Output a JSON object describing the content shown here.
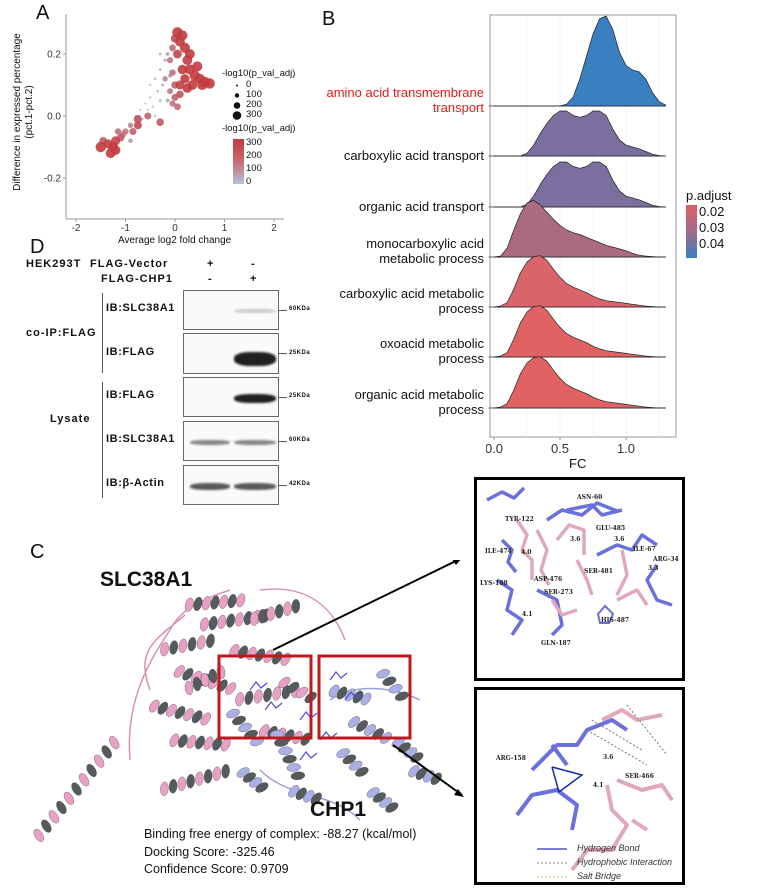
{
  "panels": {
    "a": "A",
    "b": "B",
    "c": "C",
    "d": "D"
  },
  "chart_data": [
    {
      "type": "scatter",
      "xlabel": "Average log2 fold change",
      "ylabel": "Difference in expressed percentage\n(pct.1-pct.2)",
      "ylabel_lines": [
        "Difference in expressed percentage",
        "(pct.1-pct.2)"
      ],
      "xlim": [
        -2.2,
        2.2
      ],
      "ylim": [
        -0.33,
        0.31
      ],
      "xticks": [
        "-2",
        "-1",
        "0",
        "1",
        "2"
      ],
      "xtick_values": [
        -2,
        -1,
        0,
        1,
        2
      ],
      "yticks": [
        "0.2",
        "0.0",
        "-0.2"
      ],
      "ytick_values": [
        0.2,
        0,
        -0.2
      ],
      "grid": false,
      "size_legend": {
        "title": "-log10(p_val_adj)",
        "values": [
          "0",
          "100",
          "200",
          "300"
        ]
      },
      "color_legend": {
        "title": "-log10(p_val_adj)",
        "labels": [
          "300",
          "200",
          "100",
          "0"
        ],
        "low_color": "#b7c0da",
        "high_color": "#c13b3f"
      },
      "legend_position": "right",
      "points": [
        [
          0.05,
          0.27,
          300
        ],
        [
          0.15,
          0.26,
          290
        ],
        [
          0.1,
          0.24,
          280
        ],
        [
          0.2,
          0.22,
          290
        ],
        [
          0.05,
          0.2,
          240
        ],
        [
          0.25,
          0.18,
          280
        ],
        [
          0.3,
          0.15,
          290
        ],
        [
          0.4,
          0.13,
          300
        ],
        [
          0.5,
          0.12,
          290
        ],
        [
          0.6,
          0.11,
          300
        ],
        [
          0.7,
          0.105,
          300
        ],
        [
          0.2,
          0.12,
          260
        ],
        [
          0.35,
          0.1,
          280
        ],
        [
          0.15,
          0.15,
          270
        ],
        [
          0.1,
          0.1,
          250
        ],
        [
          0.45,
          0.16,
          290
        ],
        [
          0.3,
          0.2,
          280
        ],
        [
          0.0,
          0.25,
          230
        ],
        [
          0.55,
          0.1,
          290
        ],
        [
          0.25,
          0.09,
          270
        ],
        [
          -0.05,
          0.22,
          170
        ],
        [
          -0.1,
          0.18,
          150
        ],
        [
          -0.05,
          0.14,
          160
        ],
        [
          0.0,
          0.1,
          190
        ],
        [
          -0.1,
          0.08,
          140
        ],
        [
          0.0,
          0.06,
          180
        ],
        [
          -0.2,
          0.12,
          120
        ],
        [
          0.1,
          0.07,
          200
        ],
        [
          -0.05,
          0.04,
          150
        ],
        [
          0.05,
          0.03,
          170
        ],
        [
          -0.3,
          0.15,
          30
        ],
        [
          -0.4,
          0.12,
          20
        ],
        [
          -0.35,
          0.08,
          25
        ],
        [
          -0.5,
          0.06,
          10
        ],
        [
          -0.6,
          0.04,
          5
        ],
        [
          -0.45,
          0.03,
          10
        ],
        [
          -0.25,
          0.1,
          40
        ],
        [
          -0.2,
          0.18,
          50
        ],
        [
          -0.15,
          0.2,
          60
        ],
        [
          -0.55,
          0.02,
          5
        ],
        [
          -0.7,
          0.02,
          5
        ],
        [
          -0.65,
          -0.01,
          5
        ],
        [
          -0.8,
          0.0,
          5
        ],
        [
          -0.3,
          0.05,
          30
        ],
        [
          -0.4,
          0.0,
          15
        ],
        [
          -0.15,
          0.05,
          60
        ],
        [
          -0.1,
          0.13,
          70
        ],
        [
          -0.3,
          0.2,
          30
        ],
        [
          -0.5,
          0.1,
          10
        ],
        [
          -0.3,
          -0.02,
          200
        ],
        [
          -0.55,
          0.0,
          180
        ],
        [
          -0.75,
          -0.01,
          220
        ],
        [
          -0.75,
          -0.03,
          220
        ],
        [
          -0.85,
          -0.05,
          180
        ],
        [
          -0.9,
          -0.03,
          120
        ],
        [
          -1.0,
          -0.05,
          150
        ],
        [
          -1.1,
          -0.07,
          200
        ],
        [
          -1.2,
          -0.08,
          250
        ],
        [
          -1.25,
          -0.1,
          280
        ],
        [
          -1.3,
          -0.12,
          280
        ],
        [
          -1.35,
          -0.09,
          250
        ],
        [
          -1.45,
          -0.08,
          200
        ],
        [
          -1.5,
          -0.1,
          300
        ],
        [
          -1.2,
          -0.11,
          270
        ],
        [
          -1.05,
          -0.06,
          150
        ],
        [
          -0.9,
          -0.08,
          90
        ],
        [
          -1.15,
          -0.05,
          160
        ]
      ]
    },
    {
      "type": "ridgeline",
      "xlabel": "FC",
      "xlim": [
        -0.05,
        1.38
      ],
      "xticks": [
        "0.0",
        "0.5",
        "1.0"
      ],
      "xtick_values": [
        0,
        0.5,
        1.0
      ],
      "grid": true,
      "legend": {
        "title": "p.adjust",
        "labels": [
          "0.02",
          "0.03",
          "0.04"
        ],
        "low_color": "#e06060",
        "high_color": "#3a80c0"
      },
      "legend_position": "right",
      "fc_grid": [
        0,
        0.05,
        0.1,
        0.15,
        0.2,
        0.25,
        0.3,
        0.35,
        0.4,
        0.45,
        0.5,
        0.55,
        0.6,
        0.65,
        0.7,
        0.75,
        0.8,
        0.85,
        0.9,
        0.95,
        1.0,
        1.05,
        1.1,
        1.15,
        1.2,
        1.25,
        1.3
      ],
      "series": [
        {
          "name_lines": [
            "amino acid transmembrane",
            "transport"
          ],
          "highlight": true,
          "p_adjust": 0.045,
          "color": "#3a80c0",
          "density": [
            0,
            0,
            0,
            0,
            0,
            0,
            0,
            0,
            0,
            0,
            0,
            0.02,
            0.1,
            0.3,
            0.55,
            0.8,
            0.97,
            1.0,
            0.85,
            0.6,
            0.45,
            0.4,
            0.38,
            0.3,
            0.15,
            0.05,
            0.01
          ]
        },
        {
          "name_lines": [
            "carboxylic acid transport"
          ],
          "p_adjust": 0.036,
          "color": "#7a6f9e",
          "density": [
            0,
            0,
            0,
            0,
            0,
            0.03,
            0.12,
            0.25,
            0.36,
            0.45,
            0.5,
            0.5,
            0.45,
            0.43,
            0.45,
            0.5,
            0.5,
            0.45,
            0.3,
            0.18,
            0.12,
            0.1,
            0.08,
            0.05,
            0.02,
            0.005,
            0
          ]
        },
        {
          "name_lines": [
            "organic acid transport"
          ],
          "p_adjust": 0.036,
          "color": "#7a6f9e",
          "density": [
            0,
            0,
            0,
            0,
            0,
            0.03,
            0.12,
            0.25,
            0.36,
            0.45,
            0.5,
            0.5,
            0.45,
            0.43,
            0.45,
            0.5,
            0.5,
            0.45,
            0.3,
            0.18,
            0.12,
            0.1,
            0.08,
            0.05,
            0.02,
            0.005,
            0
          ]
        },
        {
          "name_lines": [
            "monocarboxylic acid",
            "metabolic process"
          ],
          "p_adjust": 0.03,
          "color": "#a96a82",
          "density": [
            0,
            0.01,
            0.1,
            0.3,
            0.48,
            0.6,
            0.63,
            0.58,
            0.5,
            0.42,
            0.35,
            0.3,
            0.27,
            0.25,
            0.22,
            0.19,
            0.16,
            0.13,
            0.11,
            0.09,
            0.07,
            0.04,
            0.02,
            0.01,
            0.005,
            0,
            0
          ]
        },
        {
          "name_lines": [
            "carboxylic acid metabolic",
            "process"
          ],
          "p_adjust": 0.022,
          "color": "#d9646a",
          "density": [
            0,
            0.01,
            0.05,
            0.2,
            0.38,
            0.5,
            0.56,
            0.57,
            0.52,
            0.42,
            0.33,
            0.26,
            0.22,
            0.19,
            0.16,
            0.12,
            0.09,
            0.07,
            0.06,
            0.05,
            0.04,
            0.03,
            0.02,
            0.01,
            0.005,
            0,
            0
          ]
        },
        {
          "name_lines": [
            "oxoacid metabolic",
            "process"
          ],
          "p_adjust": 0.02,
          "color": "#e06262",
          "density": [
            0,
            0.01,
            0.05,
            0.2,
            0.38,
            0.5,
            0.56,
            0.57,
            0.52,
            0.42,
            0.33,
            0.26,
            0.22,
            0.19,
            0.16,
            0.12,
            0.09,
            0.07,
            0.06,
            0.05,
            0.04,
            0.03,
            0.02,
            0.01,
            0.005,
            0,
            0
          ]
        },
        {
          "name_lines": [
            "organic acid metabolic",
            "process"
          ],
          "p_adjust": 0.02,
          "color": "#e06262",
          "density": [
            0,
            0.01,
            0.05,
            0.2,
            0.38,
            0.5,
            0.56,
            0.57,
            0.52,
            0.42,
            0.33,
            0.26,
            0.22,
            0.19,
            0.16,
            0.12,
            0.09,
            0.07,
            0.06,
            0.05,
            0.04,
            0.03,
            0.02,
            0.01,
            0.005,
            0,
            0
          ]
        }
      ]
    }
  ],
  "blot": {
    "cell_line": "HEK293T",
    "conditions": [
      {
        "label": "FLAG-Vector",
        "lanes": [
          "+",
          "-"
        ]
      },
      {
        "label": "FLAG-CHP1",
        "lanes": [
          "-",
          "+"
        ]
      }
    ],
    "groups": [
      "co-IP:FLAG",
      "Lysate"
    ],
    "rows": [
      {
        "label": "IB:SLC38A1",
        "kda": "60KDa"
      },
      {
        "label": "IB:FLAG",
        "kda": "25KDa"
      },
      {
        "label": "IB:FLAG",
        "kda": "25KDa"
      },
      {
        "label": "IB:SLC38A1",
        "kda": "60KDa"
      },
      {
        "label": "IB:β-Actin",
        "kda": "42KDa"
      }
    ]
  },
  "structure": {
    "protein1": "SLC38A1",
    "protein2": "CHP1",
    "colors": {
      "slc38a1": "#e8a0c4",
      "chp1": "#aab0e6",
      "box": "#c0181c"
    },
    "binding_energy": "Binding free energy of complex: -88.27 (kcal/mol)",
    "docking_score": "Docking Score: -325.46",
    "confidence_score": "Confidence Score: 0.9709"
  },
  "inset1": {
    "residues": [
      "ASN-60",
      "TYR-122",
      "GLU-485",
      "3.6",
      "3.6",
      "ILE-67",
      "ARG-34",
      "3.3",
      "ILE-474",
      "4.0",
      "SER-481",
      "ASP-476",
      "LYS-188",
      "SER-273",
      "4.1",
      "HIS-487",
      "GLN-187"
    ]
  },
  "inset2": {
    "residues": [
      "ARG-158",
      "3.6",
      "SER-466",
      "4.1"
    ],
    "legend": [
      {
        "label": "Hydrogen Bond",
        "color": "#7a80d8"
      },
      {
        "label": "Hydrophobic Interaction",
        "color": "#8a7fa0"
      },
      {
        "label": "Salt Bridge",
        "color": "#f0b070"
      }
    ]
  }
}
